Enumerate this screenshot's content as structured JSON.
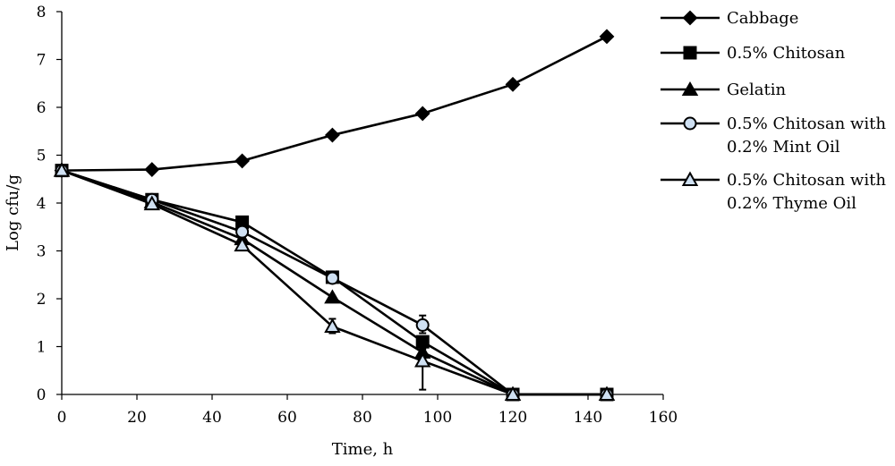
{
  "chart_data": {
    "type": "line",
    "title": "",
    "xlabel": "Time, h",
    "ylabel": "Log cfu/g",
    "xlim": [
      0,
      160
    ],
    "ylim": [
      0,
      8
    ],
    "x_ticks": [
      0,
      20,
      40,
      60,
      80,
      100,
      120,
      140,
      160
    ],
    "y_ticks": [
      0,
      1,
      2,
      3,
      4,
      5,
      6,
      7,
      8
    ],
    "x_tick_labels": [
      "0",
      "20",
      "40",
      "60",
      "80",
      "100",
      "120",
      "140",
      "160"
    ],
    "y_tick_labels": [
      "0",
      "1",
      "2",
      "3",
      "4",
      "5",
      "6",
      "7",
      "8"
    ],
    "grid": false,
    "legend_position": "right",
    "series": [
      {
        "name": "Cabbage",
        "marker": "diamond",
        "color": "#000000",
        "x": [
          0,
          24,
          48,
          72,
          96,
          120,
          145
        ],
        "y": [
          4.68,
          4.7,
          4.88,
          5.42,
          5.87,
          6.48,
          7.48
        ]
      },
      {
        "name": "0.5% Chitosan",
        "marker": "square",
        "color": "#000000",
        "x": [
          0,
          24,
          48,
          72,
          96,
          120,
          145
        ],
        "y": [
          4.68,
          4.07,
          3.6,
          2.45,
          1.1,
          0,
          0
        ]
      },
      {
        "name": "Gelatin",
        "marker": "triangle",
        "color": "#000000",
        "x": [
          0,
          24,
          48,
          72,
          96,
          120,
          145
        ],
        "y": [
          4.68,
          4.02,
          3.25,
          2.03,
          0.88,
          0,
          0
        ]
      },
      {
        "name": "0.5% Chitosan with 0.2% Mint Oil",
        "legend_lines": [
          "0.5% Chitosan with",
          "0.2% Mint Oil"
        ],
        "marker": "circle",
        "color": "#000000",
        "fill": "#cfe0f2",
        "x": [
          0,
          24,
          48,
          72,
          96,
          120,
          145
        ],
        "y": [
          4.68,
          4.07,
          3.4,
          2.43,
          1.45,
          0,
          0
        ]
      },
      {
        "name": "0.5% Chitosan with 0.2% Thyme Oil",
        "legend_lines": [
          "0.5% Chitosan with",
          "0.2% Thyme Oil"
        ],
        "marker": "open-triangle",
        "color": "#000000",
        "fill": "#cfe0f2",
        "x": [
          0,
          24,
          48,
          72,
          96,
          120,
          145
        ],
        "y": [
          4.68,
          3.98,
          3.12,
          1.42,
          0.7,
          0,
          0
        ]
      }
    ],
    "error_bars": [
      {
        "series": "0.5% Chitosan with 0.2% Thyme Oil",
        "x": 72,
        "low": 1.28,
        "high": 1.58
      },
      {
        "series": "0.5% Chitosan with 0.2% Mint Oil",
        "x": 96,
        "low": 1.28,
        "high": 1.65
      },
      {
        "series": "0.5% Chitosan with 0.2% Thyme Oil",
        "x": 96,
        "low": 0.1,
        "high": 0.95
      }
    ]
  }
}
